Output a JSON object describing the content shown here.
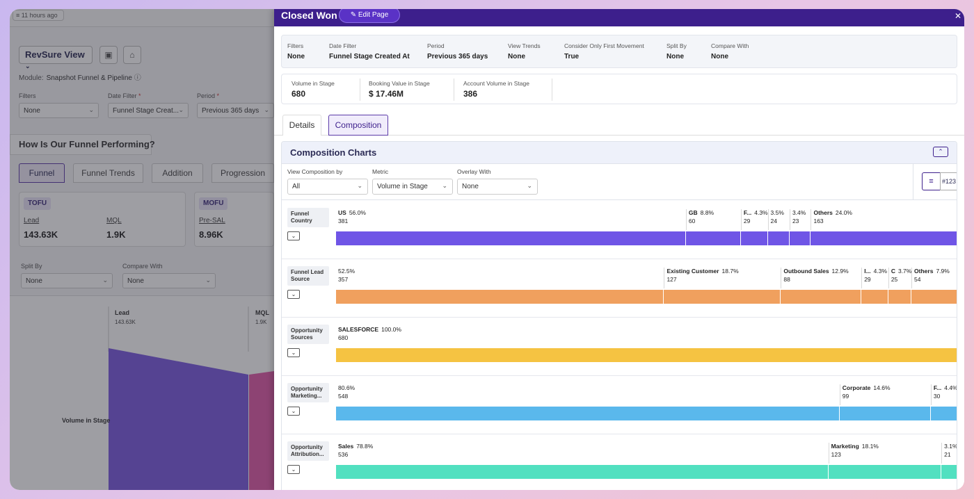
{
  "background": {
    "chip": "11 hours ago",
    "view_select": "RevSure View",
    "module_label": "Module:",
    "module_value": "Snapshot Funnel & Pipeline",
    "filters_label": "Filters",
    "filters_value": "None",
    "date_filter_label": "Date Filter",
    "date_filter_value": "Funnel Stage Creat...",
    "period_label": "Period",
    "period_value": "Previous 365 days",
    "heading": "How Is Our Funnel Performing?",
    "tabs": [
      "Funnel",
      "Funnel Trends",
      "Addition",
      "Progression"
    ],
    "tofu": "TOFU",
    "mofu": "MOFU",
    "kpis": [
      {
        "label": "Lead",
        "value": "143.63K"
      },
      {
        "label": "MQL",
        "value": "1.9K"
      },
      {
        "label": "Pre-SAL",
        "value": "8.96K"
      }
    ],
    "split_by_label": "Split By",
    "split_by_value": "None",
    "compare_with_label": "Compare With",
    "compare_with_value": "None",
    "funnel_lead": "Lead",
    "funnel_lead_val": "143.63K",
    "funnel_mql": "MQL",
    "funnel_mql_val": "1.9K",
    "funnel_axis": "Volume in Stage"
  },
  "drawer": {
    "title": "Closed Won",
    "edit_label": "Edit Page",
    "filters": [
      {
        "k": "Filters",
        "v": "None"
      },
      {
        "k": "Date Filter",
        "v": "Funnel Stage Created At"
      },
      {
        "k": "Period",
        "v": "Previous 365 days"
      },
      {
        "k": "View Trends",
        "v": "None"
      },
      {
        "k": "Consider Only First Movement",
        "v": "True"
      },
      {
        "k": "Split By",
        "v": "None"
      },
      {
        "k": "Compare With",
        "v": "None"
      }
    ],
    "metrics": [
      {
        "k": "Volume in Stage",
        "v": "680"
      },
      {
        "k": "Booking Value in Stage",
        "v": "$ 17.46M"
      },
      {
        "k": "Account Volume in Stage",
        "v": "386"
      }
    ],
    "tabs": [
      "Details",
      "Composition"
    ],
    "composition": {
      "title": "Composition Charts",
      "view_by_label": "View Composition by",
      "view_by_value": "All",
      "metric_label": "Metric",
      "metric_value": "Volume in Stage",
      "overlay_label": "Overlay With",
      "overlay_value": "None",
      "toggle_right": "#123"
    }
  },
  "colors": {
    "purple_header": "#3d1f8c",
    "country": "#6f55e6",
    "lead_source": "#f0a05e",
    "sources": "#f5c342",
    "marketing": "#5ab8ec",
    "attribution": "#52e0c0"
  },
  "chart_data": {
    "type": "bar",
    "orientation": "stacked-horizontal",
    "rows": [
      {
        "label": "Funnel Country",
        "color": "#6f55e6",
        "segments": [
          {
            "name": "US",
            "pct": "56.0%",
            "count": "381",
            "value": 56.0
          },
          {
            "name": "GB",
            "pct": "8.8%",
            "count": "60",
            "value": 8.8
          },
          {
            "name": "F...",
            "pct": "4.3%",
            "count": "29",
            "value": 4.3
          },
          {
            "name": "",
            "pct": "3.5%",
            "count": "24",
            "value": 3.5
          },
          {
            "name": "",
            "pct": "3.4%",
            "count": "23",
            "value": 3.4
          },
          {
            "name": "Others",
            "pct": "24.0%",
            "count": "163",
            "value": 24.0
          }
        ]
      },
      {
        "label": "Funnel Lead Source",
        "color": "#f0a05e",
        "segments": [
          {
            "name": "",
            "pct": "52.5%",
            "count": "357",
            "value": 52.5
          },
          {
            "name": "Existing Customer",
            "pct": "18.7%",
            "count": "127",
            "value": 18.7
          },
          {
            "name": "Outbound Sales",
            "pct": "12.9%",
            "count": "88",
            "value": 12.9
          },
          {
            "name": "I...",
            "pct": "4.3%",
            "count": "29",
            "value": 4.3
          },
          {
            "name": "C",
            "pct": "3.7%",
            "count": "25",
            "value": 3.7
          },
          {
            "name": "Others",
            "pct": "7.9%",
            "count": "54",
            "value": 7.9
          }
        ]
      },
      {
        "label": "Opportunity Sources",
        "color": "#f5c342",
        "segments": [
          {
            "name": "SALESFORCE",
            "pct": "100.0%",
            "count": "680",
            "value": 100.0
          }
        ]
      },
      {
        "label": "Opportunity Marketing...",
        "color": "#5ab8ec",
        "segments": [
          {
            "name": "",
            "pct": "80.6%",
            "count": "548",
            "value": 80.6
          },
          {
            "name": "Corporate",
            "pct": "14.6%",
            "count": "99",
            "value": 14.6
          },
          {
            "name": "F...",
            "pct": "4.4%",
            "count": "30",
            "value": 4.4
          }
        ]
      },
      {
        "label": "Opportunity Attribution...",
        "color": "#52e0c0",
        "segments": [
          {
            "name": "Sales",
            "pct": "78.8%",
            "count": "536",
            "value": 78.8
          },
          {
            "name": "Marketing",
            "pct": "18.1%",
            "count": "123",
            "value": 18.1
          },
          {
            "name": "",
            "pct": "3.1%",
            "count": "21",
            "value": 3.1
          }
        ]
      }
    ]
  }
}
